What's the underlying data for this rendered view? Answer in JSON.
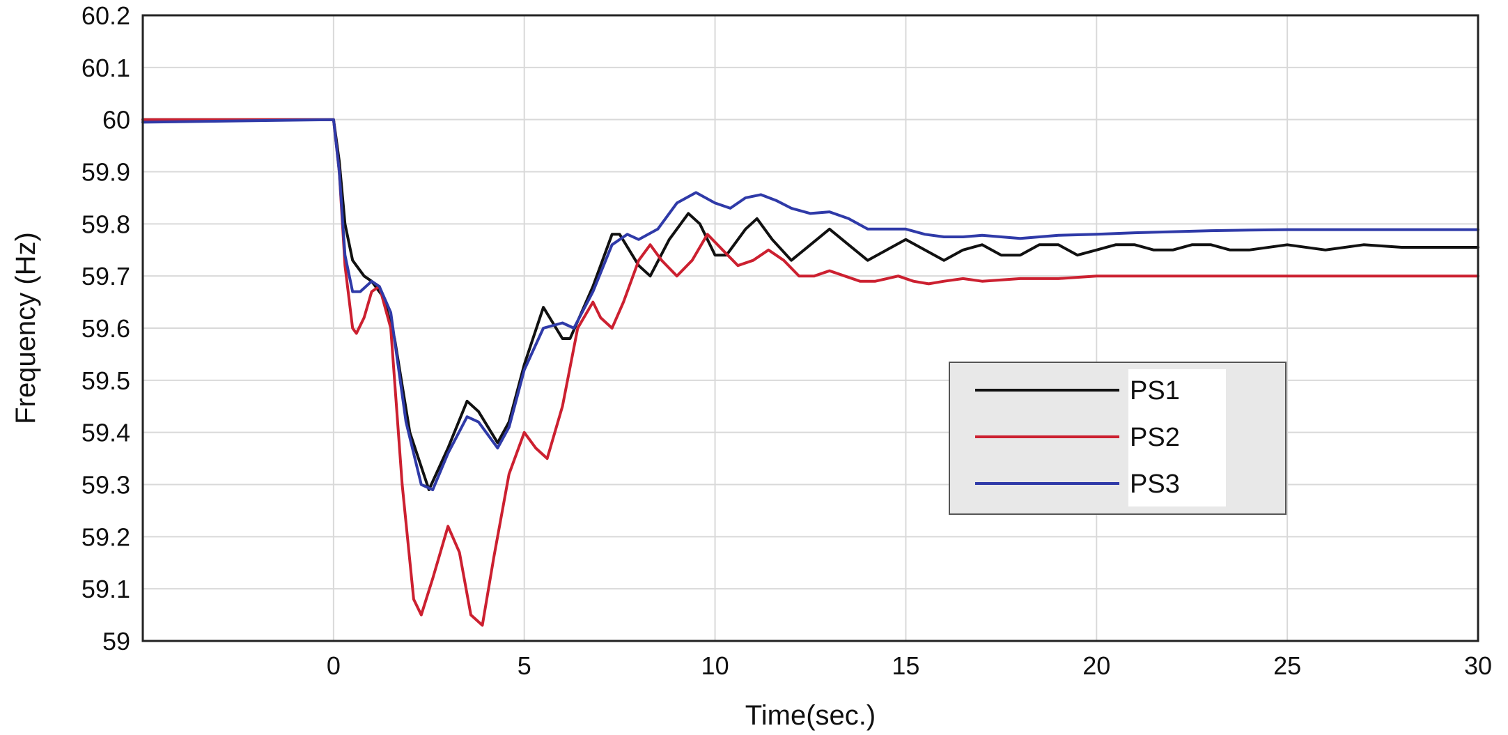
{
  "chart_data": {
    "type": "line",
    "title": "",
    "xlabel": "Time(sec.)",
    "ylabel": "Frequency (Hz)",
    "xlim": [
      -5,
      30
    ],
    "ylim": [
      59.0,
      60.2
    ],
    "xticks": [
      0,
      5,
      10,
      15,
      20,
      25,
      30
    ],
    "yticks": [
      59,
      59.1,
      59.2,
      59.3,
      59.4,
      59.5,
      59.6,
      59.7,
      59.8,
      59.9,
      60,
      60.1,
      60.2
    ],
    "xtick_labels": [
      "0",
      "5",
      "10",
      "15",
      "20",
      "25",
      "30"
    ],
    "ytick_labels": [
      "59",
      "59.1",
      "59.2",
      "59.3",
      "59.4",
      "59.5",
      "59.6",
      "59.7",
      "59.8",
      "59.9",
      "60",
      "60.1",
      "60.2"
    ],
    "grid": true,
    "legend": {
      "position": "center-right",
      "background": "#e8e8e8"
    },
    "series": [
      {
        "name": "PS1",
        "color": "#111111",
        "points": [
          [
            -5,
            60.0
          ],
          [
            0,
            60.0
          ],
          [
            0.15,
            59.92
          ],
          [
            0.3,
            59.8
          ],
          [
            0.5,
            59.73
          ],
          [
            0.8,
            59.7
          ],
          [
            1.0,
            59.69
          ],
          [
            1.3,
            59.66
          ],
          [
            1.6,
            59.58
          ],
          [
            2.0,
            59.4
          ],
          [
            2.5,
            59.29
          ],
          [
            3.0,
            59.37
          ],
          [
            3.5,
            59.46
          ],
          [
            3.8,
            59.44
          ],
          [
            4.3,
            59.38
          ],
          [
            4.6,
            59.42
          ],
          [
            5.0,
            59.53
          ],
          [
            5.5,
            59.64
          ],
          [
            6.0,
            59.58
          ],
          [
            6.2,
            59.58
          ],
          [
            6.8,
            59.68
          ],
          [
            7.3,
            59.78
          ],
          [
            7.5,
            59.78
          ],
          [
            8.0,
            59.72
          ],
          [
            8.3,
            59.7
          ],
          [
            8.8,
            59.77
          ],
          [
            9.3,
            59.82
          ],
          [
            9.6,
            59.8
          ],
          [
            10.0,
            59.74
          ],
          [
            10.3,
            59.74
          ],
          [
            10.8,
            59.79
          ],
          [
            11.1,
            59.81
          ],
          [
            11.5,
            59.77
          ],
          [
            12.0,
            59.73
          ],
          [
            12.5,
            59.76
          ],
          [
            13.0,
            59.79
          ],
          [
            13.5,
            59.76
          ],
          [
            14.0,
            59.73
          ],
          [
            14.5,
            59.75
          ],
          [
            15.0,
            59.77
          ],
          [
            15.5,
            59.75
          ],
          [
            16.0,
            59.73
          ],
          [
            16.5,
            59.75
          ],
          [
            17.0,
            59.76
          ],
          [
            17.5,
            59.74
          ],
          [
            18.0,
            59.74
          ],
          [
            18.5,
            59.76
          ],
          [
            19.0,
            59.76
          ],
          [
            19.5,
            59.74
          ],
          [
            20.0,
            59.75
          ],
          [
            20.5,
            59.76
          ],
          [
            21.0,
            59.76
          ],
          [
            21.5,
            59.75
          ],
          [
            22.0,
            59.75
          ],
          [
            22.5,
            59.76
          ],
          [
            23.0,
            59.76
          ],
          [
            23.5,
            59.75
          ],
          [
            24.0,
            59.75
          ],
          [
            25.0,
            59.76
          ],
          [
            26.0,
            59.75
          ],
          [
            27.0,
            59.76
          ],
          [
            28.0,
            59.755
          ],
          [
            29.0,
            59.755
          ],
          [
            30.0,
            59.755
          ]
        ]
      },
      {
        "name": "PS2",
        "color": "#cc2030",
        "points": [
          [
            -5,
            60.0
          ],
          [
            0,
            60.0
          ],
          [
            0.15,
            59.9
          ],
          [
            0.3,
            59.72
          ],
          [
            0.5,
            59.6
          ],
          [
            0.6,
            59.59
          ],
          [
            0.8,
            59.62
          ],
          [
            1.0,
            59.67
          ],
          [
            1.2,
            59.68
          ],
          [
            1.5,
            59.6
          ],
          [
            1.8,
            59.3
          ],
          [
            2.1,
            59.08
          ],
          [
            2.3,
            59.05
          ],
          [
            2.6,
            59.12
          ],
          [
            3.0,
            59.22
          ],
          [
            3.3,
            59.17
          ],
          [
            3.6,
            59.05
          ],
          [
            3.9,
            59.03
          ],
          [
            4.2,
            59.16
          ],
          [
            4.6,
            59.32
          ],
          [
            5.0,
            59.4
          ],
          [
            5.3,
            59.37
          ],
          [
            5.6,
            59.35
          ],
          [
            6.0,
            59.45
          ],
          [
            6.4,
            59.6
          ],
          [
            6.8,
            59.65
          ],
          [
            7.0,
            59.62
          ],
          [
            7.3,
            59.6
          ],
          [
            7.6,
            59.65
          ],
          [
            8.0,
            59.73
          ],
          [
            8.3,
            59.76
          ],
          [
            8.6,
            59.73
          ],
          [
            9.0,
            59.7
          ],
          [
            9.4,
            59.73
          ],
          [
            9.8,
            59.78
          ],
          [
            10.2,
            59.75
          ],
          [
            10.6,
            59.72
          ],
          [
            11.0,
            59.73
          ],
          [
            11.4,
            59.75
          ],
          [
            11.8,
            59.73
          ],
          [
            12.2,
            59.7
          ],
          [
            12.6,
            59.7
          ],
          [
            13.0,
            59.71
          ],
          [
            13.4,
            59.7
          ],
          [
            13.8,
            59.69
          ],
          [
            14.2,
            59.69
          ],
          [
            14.8,
            59.7
          ],
          [
            15.2,
            59.69
          ],
          [
            15.6,
            59.685
          ],
          [
            16.0,
            59.69
          ],
          [
            16.5,
            59.695
          ],
          [
            17.0,
            59.69
          ],
          [
            18.0,
            59.695
          ],
          [
            19.0,
            59.695
          ],
          [
            20.0,
            59.7
          ],
          [
            22.0,
            59.7
          ],
          [
            24.0,
            59.7
          ],
          [
            26.0,
            59.7
          ],
          [
            28.0,
            59.7
          ],
          [
            30.0,
            59.7
          ]
        ]
      },
      {
        "name": "PS3",
        "color": "#2f3aa8",
        "points": [
          [
            -5,
            59.995
          ],
          [
            0,
            60.0
          ],
          [
            0.15,
            59.9
          ],
          [
            0.3,
            59.74
          ],
          [
            0.5,
            59.67
          ],
          [
            0.7,
            59.67
          ],
          [
            1.0,
            59.69
          ],
          [
            1.2,
            59.68
          ],
          [
            1.5,
            59.63
          ],
          [
            1.9,
            59.42
          ],
          [
            2.3,
            59.3
          ],
          [
            2.6,
            59.29
          ],
          [
            3.0,
            59.36
          ],
          [
            3.5,
            59.43
          ],
          [
            3.8,
            59.42
          ],
          [
            4.3,
            59.37
          ],
          [
            4.6,
            59.41
          ],
          [
            5.0,
            59.52
          ],
          [
            5.5,
            59.6
          ],
          [
            6.0,
            59.61
          ],
          [
            6.3,
            59.6
          ],
          [
            6.8,
            59.67
          ],
          [
            7.3,
            59.76
          ],
          [
            7.7,
            59.78
          ],
          [
            8.0,
            59.77
          ],
          [
            8.5,
            59.79
          ],
          [
            9.0,
            59.84
          ],
          [
            9.5,
            59.86
          ],
          [
            10.0,
            59.84
          ],
          [
            10.4,
            59.83
          ],
          [
            10.8,
            59.85
          ],
          [
            11.2,
            59.856
          ],
          [
            11.6,
            59.845
          ],
          [
            12.0,
            59.83
          ],
          [
            12.5,
            59.82
          ],
          [
            13.0,
            59.823
          ],
          [
            13.5,
            59.81
          ],
          [
            14.0,
            59.79
          ],
          [
            14.5,
            59.79
          ],
          [
            15.0,
            59.79
          ],
          [
            15.5,
            59.78
          ],
          [
            16.0,
            59.775
          ],
          [
            16.5,
            59.775
          ],
          [
            17.0,
            59.778
          ],
          [
            17.5,
            59.775
          ],
          [
            18.0,
            59.772
          ],
          [
            18.5,
            59.775
          ],
          [
            19.0,
            59.778
          ],
          [
            20.0,
            59.78
          ],
          [
            21.0,
            59.783
          ],
          [
            22.0,
            59.785
          ],
          [
            23.0,
            59.787
          ],
          [
            24.0,
            59.788
          ],
          [
            25.0,
            59.789
          ],
          [
            26.0,
            59.789
          ],
          [
            28.0,
            59.789
          ],
          [
            30.0,
            59.789
          ]
        ]
      }
    ]
  }
}
